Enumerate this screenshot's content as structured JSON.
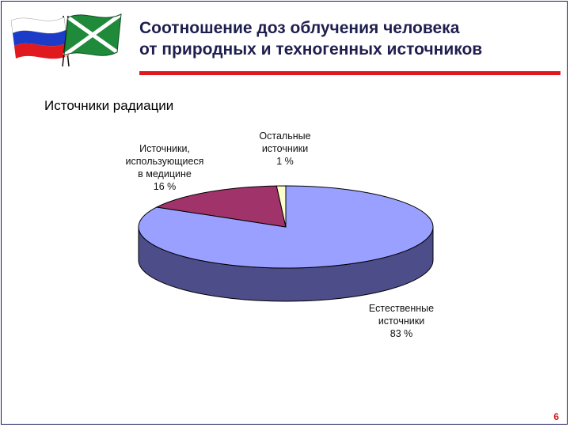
{
  "slide": {
    "title_line1": "Соотношение доз облучения человека",
    "title_line2": "от природных и техногенных источников",
    "subtitle": "Источники радиации",
    "page_number": "6"
  },
  "flags": {
    "left": "russia-flag-icon",
    "right": "border-guard-flag-icon",
    "colors": {
      "white": "#ffffff",
      "blue": "#1c3cc8",
      "red": "#e0191e",
      "green": "#1f8a3a"
    }
  },
  "chart_data": {
    "type": "pie",
    "style": "3d",
    "slices": [
      {
        "label_lines": [
          "Естественные",
          "источники",
          "83 %"
        ],
        "value": 83,
        "color": "#9aa0ff",
        "side_color": "#4d4d8a"
      },
      {
        "label_lines": [
          "Источники,",
          "использующиеся",
          "в медицине",
          "16 %"
        ],
        "value": 16,
        "color": "#a0336a",
        "side_color": "#6a1f45"
      },
      {
        "label_lines": [
          "Остальные",
          "источники",
          "1 %"
        ],
        "value": 1,
        "color": "#ffffcc",
        "side_color": "#c8c890"
      }
    ]
  }
}
